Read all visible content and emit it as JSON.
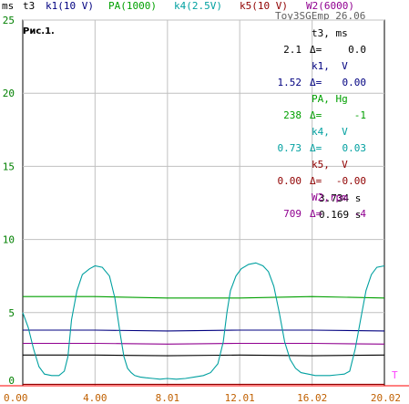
{
  "header": {
    "y_unit": "ms",
    "channels": [
      {
        "label": "t3",
        "color": "#000000"
      },
      {
        "label": "k1(10 V)",
        "color": "#000080"
      },
      {
        "label": "PA(1000)",
        "color": "#00a000"
      },
      {
        "label": "k4(2.5V)",
        "color": "#00a0a0"
      },
      {
        "label": "k5(10 V)",
        "color": "#900000"
      },
      {
        "label": "W2(6000)",
        "color": "#900090"
      }
    ],
    "subtitle": "Toy3SGEmp 26.06"
  },
  "fig_label": "Рис.1.",
  "readout": {
    "rows": [
      {
        "name": "t3, ms",
        "value": "2.1",
        "delta_sign": "Δ=",
        "delta": "0.0",
        "color": "#000000"
      },
      {
        "name": "k1,  V",
        "value": "1.52",
        "delta_sign": "Δ=",
        "delta": "0.00",
        "color": "#000080"
      },
      {
        "name": "PA, Hg",
        "value": "238",
        "delta_sign": "Δ=",
        "delta": "-1",
        "color": "#00a000"
      },
      {
        "name": "k4,  V",
        "value": "0.73",
        "delta_sign": "Δ=",
        "delta": "0.03",
        "color": "#00a0a0"
      },
      {
        "name": "k5,  V",
        "value": "0.00",
        "delta_sign": "Δ=",
        "delta": "-0.00",
        "color": "#900000"
      },
      {
        "name": "W2,rpm",
        "value": "709",
        "delta_sign": "Δ=",
        "delta": "-4",
        "color": "#900090"
      }
    ],
    "cursor_time": "3.734 s",
    "cursor_delta": "0.169 s"
  },
  "t_marker": "T",
  "colors": {
    "grid": "#c0c0c0",
    "x_tick_text": "#c06000",
    "y_tick_text": "#008000",
    "axis": "#000000",
    "red_axis": "#ff0000"
  },
  "chart_data": {
    "type": "line",
    "title": "",
    "xlabel": "",
    "ylabel": "ms",
    "xlim": [
      0,
      20.02
    ],
    "ylim": [
      0,
      25
    ],
    "x_ticks": [
      "0.00",
      "4.00",
      "8.01",
      "12.01",
      "16.02",
      "20.02"
    ],
    "x_tick_values": [
      0,
      4.0,
      8.01,
      12.01,
      16.02,
      20.02
    ],
    "y_ticks": [
      "0",
      "5",
      "10",
      "15",
      "20",
      "25"
    ],
    "y_tick_values": [
      0,
      5,
      10,
      15,
      20,
      25
    ],
    "grid": true,
    "series": [
      {
        "name": "t3",
        "color": "#000000",
        "x": [
          0,
          4,
          8,
          12,
          16,
          20.02
        ],
        "y": [
          2.1,
          2.1,
          2.05,
          2.1,
          2.05,
          2.1
        ]
      },
      {
        "name": "k1(10 V)",
        "color": "#000080",
        "x": [
          0,
          4,
          8,
          12,
          16,
          20.02
        ],
        "y": [
          3.8,
          3.8,
          3.75,
          3.8,
          3.8,
          3.75
        ]
      },
      {
        "name": "PA(1000)",
        "color": "#00a000",
        "x": [
          0,
          4,
          8,
          12,
          16,
          20.02
        ],
        "y": [
          6.1,
          6.1,
          6.0,
          6.0,
          6.1,
          6.0
        ]
      },
      {
        "name": "k5(10 V)",
        "color": "#900000",
        "x": [
          0,
          20.02
        ],
        "y": [
          0.1,
          0.1
        ]
      },
      {
        "name": "W2(6000)",
        "color": "#900090",
        "x": [
          0,
          4,
          8,
          12,
          16,
          20.02
        ],
        "y": [
          2.9,
          2.9,
          2.85,
          2.9,
          2.9,
          2.85
        ]
      },
      {
        "name": "k4(2.5V)",
        "color": "#00a0a0",
        "x": [
          0,
          0.3,
          0.6,
          0.9,
          1.2,
          1.6,
          2.0,
          2.3,
          2.5,
          2.7,
          3.0,
          3.3,
          3.7,
          4.0,
          4.4,
          4.8,
          5.1,
          5.4,
          5.6,
          5.8,
          6.0,
          6.2,
          6.5,
          6.8,
          7.2,
          7.6,
          8.0,
          8.5,
          9.0,
          9.5,
          10.0,
          10.4,
          10.8,
          11.1,
          11.3,
          11.5,
          11.8,
          12.1,
          12.5,
          12.9,
          13.3,
          13.6,
          13.9,
          14.2,
          14.5,
          14.8,
          15.1,
          15.4,
          15.8,
          16.2,
          16.6,
          17.0,
          17.4,
          17.8,
          18.1,
          18.4,
          18.7,
          19.0,
          19.3,
          19.6,
          20.02
        ],
        "y": [
          5.0,
          4.0,
          2.5,
          1.3,
          0.8,
          0.7,
          0.7,
          1.0,
          2.0,
          4.5,
          6.5,
          7.6,
          8.0,
          8.2,
          8.1,
          7.5,
          6.0,
          3.5,
          2.0,
          1.2,
          0.9,
          0.7,
          0.6,
          0.55,
          0.5,
          0.45,
          0.5,
          0.45,
          0.5,
          0.6,
          0.7,
          0.9,
          1.5,
          3.0,
          5.0,
          6.5,
          7.5,
          8.0,
          8.3,
          8.4,
          8.2,
          7.8,
          6.8,
          5.0,
          3.0,
          1.8,
          1.2,
          0.9,
          0.8,
          0.7,
          0.7,
          0.7,
          0.75,
          0.8,
          1.0,
          2.5,
          4.5,
          6.5,
          7.6,
          8.1,
          8.2
        ]
      }
    ]
  }
}
